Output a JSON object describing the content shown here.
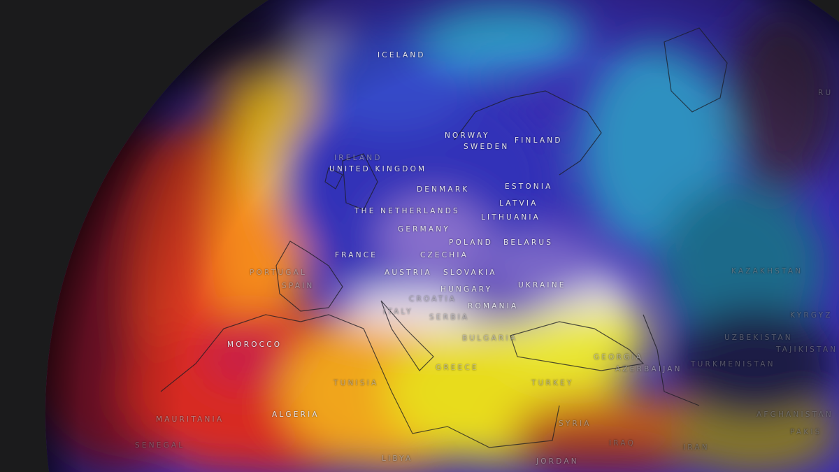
{
  "map": {
    "type": "weather-temperature-anomaly-globe",
    "colors": {
      "background": "#1b1b1c",
      "hot": "#d8232a",
      "warm": "#f5c51a",
      "yellow": "#e8e61c",
      "neutral": "#f2eef6",
      "cool": "#7b5cc8",
      "cold": "#3230b8",
      "cyan": "#2fb6c8",
      "deep": "#2b1d4a"
    },
    "labels": [
      {
        "id": "iceland",
        "text": "ICELAND"
      },
      {
        "id": "norway",
        "text": "NORWAY"
      },
      {
        "id": "sweden",
        "text": "SWEDEN"
      },
      {
        "id": "finland",
        "text": "FINLAND"
      },
      {
        "id": "ireland",
        "text": "IRELAND"
      },
      {
        "id": "uk",
        "text": "UNITED KINGDOM"
      },
      {
        "id": "denmark",
        "text": "DENMARK"
      },
      {
        "id": "estonia",
        "text": "ESTONIA"
      },
      {
        "id": "latvia",
        "text": "LATVIA"
      },
      {
        "id": "lithuania",
        "text": "LITHUANIA"
      },
      {
        "id": "netherlands",
        "text": "THE NETHERLANDS"
      },
      {
        "id": "germany",
        "text": "GERMANY"
      },
      {
        "id": "poland",
        "text": "POLAND"
      },
      {
        "id": "belarus",
        "text": "BELARUS"
      },
      {
        "id": "france",
        "text": "FRANCE"
      },
      {
        "id": "czechia",
        "text": "CZECHIA"
      },
      {
        "id": "austria",
        "text": "AUSTRIA"
      },
      {
        "id": "slovakia",
        "text": "SLOVAKIA"
      },
      {
        "id": "ukraine",
        "text": "UKRAINE"
      },
      {
        "id": "hungary",
        "text": "HUNGARY"
      },
      {
        "id": "portugal",
        "text": "PORTUGAL"
      },
      {
        "id": "spain",
        "text": "SPAIN"
      },
      {
        "id": "croatia",
        "text": "CROATIA"
      },
      {
        "id": "italy",
        "text": "ITALY"
      },
      {
        "id": "serbia",
        "text": "SERBIA"
      },
      {
        "id": "romania",
        "text": "ROMANIA"
      },
      {
        "id": "bulgaria",
        "text": "BULGARIA"
      },
      {
        "id": "greece",
        "text": "GREECE"
      },
      {
        "id": "turkey",
        "text": "TURKEY"
      },
      {
        "id": "georgia",
        "text": "GEORGIA"
      },
      {
        "id": "azerbaijan",
        "text": "AZERBAIJAN"
      },
      {
        "id": "turkmenistan",
        "text": "TURKMENISTAN"
      },
      {
        "id": "uzbekistan",
        "text": "UZBEKISTAN"
      },
      {
        "id": "kazakhstan",
        "text": "KAZAKHSTAN"
      },
      {
        "id": "kyrgyz",
        "text": "KYRGYZ"
      },
      {
        "id": "tajikistan",
        "text": "TAJIKISTAN"
      },
      {
        "id": "afghanistan",
        "text": "AFGHANISTAN"
      },
      {
        "id": "pakistan",
        "text": "PAKIS"
      },
      {
        "id": "russia",
        "text": "RU"
      },
      {
        "id": "morocco",
        "text": "MOROCCO"
      },
      {
        "id": "algeria",
        "text": "ALGERIA"
      },
      {
        "id": "tunisia",
        "text": "TUNISIA"
      },
      {
        "id": "libya",
        "text": "LIBYA"
      },
      {
        "id": "mauritania",
        "text": "MAURITANIA"
      },
      {
        "id": "senegal",
        "text": "SENEGAL"
      },
      {
        "id": "syria",
        "text": "SYRIA"
      },
      {
        "id": "iraq",
        "text": "IRAQ"
      },
      {
        "id": "iran",
        "text": "IRAN"
      },
      {
        "id": "jordan",
        "text": "JORDAN"
      }
    ]
  }
}
